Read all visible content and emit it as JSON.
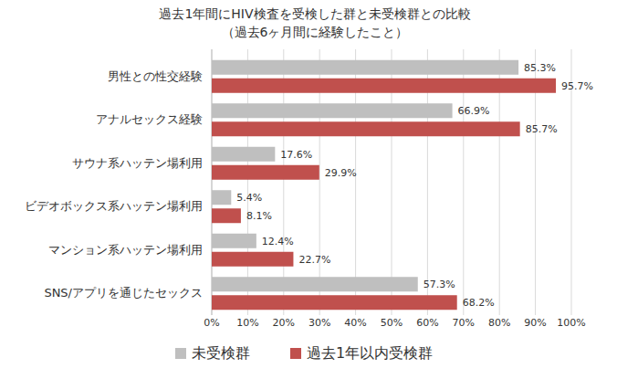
{
  "chart_data": {
    "type": "bar",
    "orientation": "horizontal",
    "title": "過去1年間にHIV検査を受検した群と未受検群との比較",
    "subtitle": "（過去6ヶ月間に経験したこと）",
    "categories": [
      "男性との性交経験",
      "アナルセックス経験",
      "サウナ系ハッテン場利用",
      "ビデオボックス系ハッテン場利用",
      "マンション系ハッテン場利用",
      "SNS/アプリを通じたセックス"
    ],
    "series": [
      {
        "name": "未受検群",
        "color": "#bfbfbf",
        "values": [
          85.3,
          66.9,
          17.6,
          5.4,
          12.4,
          57.3
        ],
        "value_labels": [
          "85.3%",
          "66.9%",
          "17.6%",
          "5.4%",
          "12.4%",
          "57.3%"
        ]
      },
      {
        "name": "過去1年以内受検群",
        "color": "#c0504d",
        "values": [
          95.7,
          85.7,
          29.9,
          8.1,
          22.7,
          68.2
        ],
        "value_labels": [
          "95.7%",
          "85.7%",
          "29.9%",
          "8.1%",
          "22.7%",
          "68.2%"
        ]
      }
    ],
    "xlim": [
      0,
      100
    ],
    "xticks": [
      {
        "value": 0,
        "label": "0%"
      },
      {
        "value": 10,
        "label": "10%"
      },
      {
        "value": 20,
        "label": "20%"
      },
      {
        "value": 30,
        "label": "30%"
      },
      {
        "value": 40,
        "label": "40%"
      },
      {
        "value": 50,
        "label": "50%"
      },
      {
        "value": 60,
        "label": "60%"
      },
      {
        "value": 70,
        "label": "70%"
      },
      {
        "value": 80,
        "label": "80%"
      },
      {
        "value": 90,
        "label": "90%"
      },
      {
        "value": 100,
        "label": "100%"
      }
    ],
    "grid": true,
    "legend": "bottom",
    "data_labels": true
  }
}
